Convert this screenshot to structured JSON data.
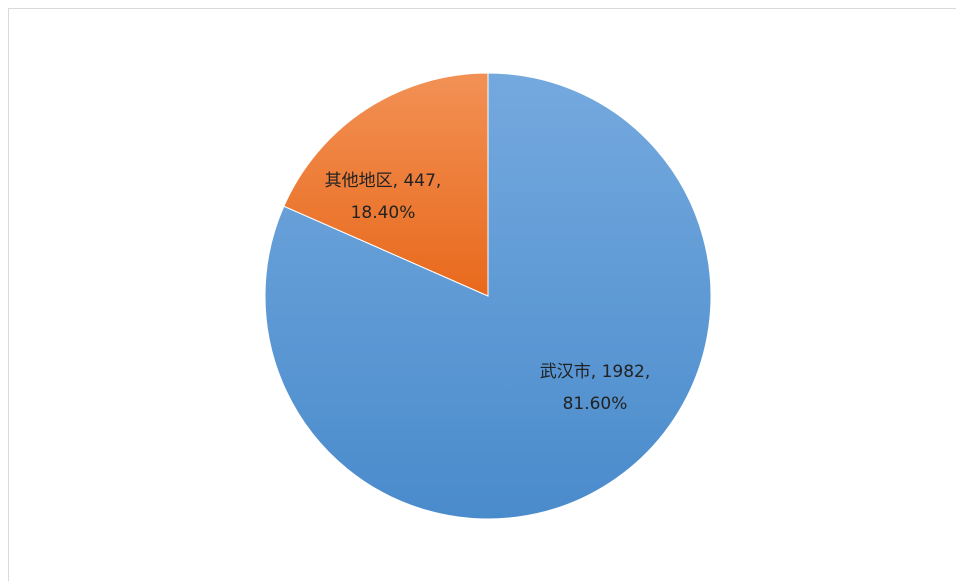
{
  "chart_data": {
    "type": "pie",
    "categories": [
      "武汉市",
      "其他地区"
    ],
    "values": [
      1982,
      447
    ],
    "percentages": [
      81.6,
      18.4
    ],
    "percent_labels": [
      "81.60%",
      "18.40%"
    ],
    "label_separator": ", ",
    "colors": [
      "#5a9bd8",
      "#ed7d31"
    ]
  }
}
